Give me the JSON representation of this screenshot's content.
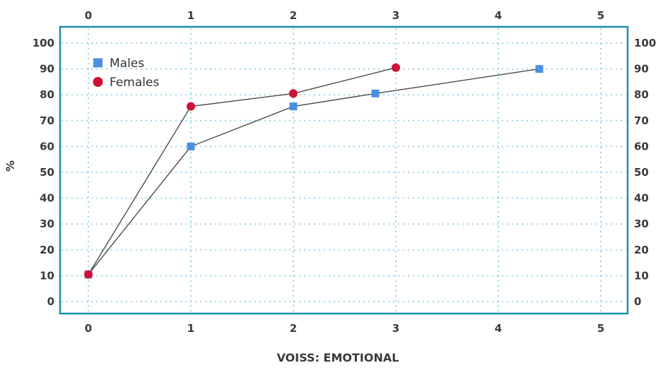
{
  "chart_data": {
    "type": "line",
    "title": "",
    "xlabel": "VOISS: EMOTIONAL",
    "ylabel": "%",
    "xlim": [
      0,
      5
    ],
    "ylim": [
      0,
      100
    ],
    "x_ticks": [
      0,
      1,
      2,
      3,
      4,
      5
    ],
    "y_ticks": [
      0,
      10,
      20,
      30,
      40,
      50,
      60,
      70,
      80,
      90,
      100
    ],
    "grid": true,
    "legend_position": "top-left",
    "frame_color": "#1b8fb0",
    "grid_color": "#9fd3ea",
    "line_color": "#4a4a4a",
    "series": [
      {
        "name": "Males",
        "marker": "square",
        "color": "#4a90e2",
        "points": [
          {
            "x": 0,
            "y": 10.5
          },
          {
            "x": 1,
            "y": 60
          },
          {
            "x": 2,
            "y": 75.5
          },
          {
            "x": 2.8,
            "y": 80.5
          },
          {
            "x": 4.4,
            "y": 90
          }
        ]
      },
      {
        "name": "Females",
        "marker": "circle",
        "color": "#d0103a",
        "points": [
          {
            "x": 0,
            "y": 10.5
          },
          {
            "x": 1,
            "y": 75.5
          },
          {
            "x": 2,
            "y": 80.5
          },
          {
            "x": 3,
            "y": 90.5
          }
        ]
      }
    ]
  }
}
